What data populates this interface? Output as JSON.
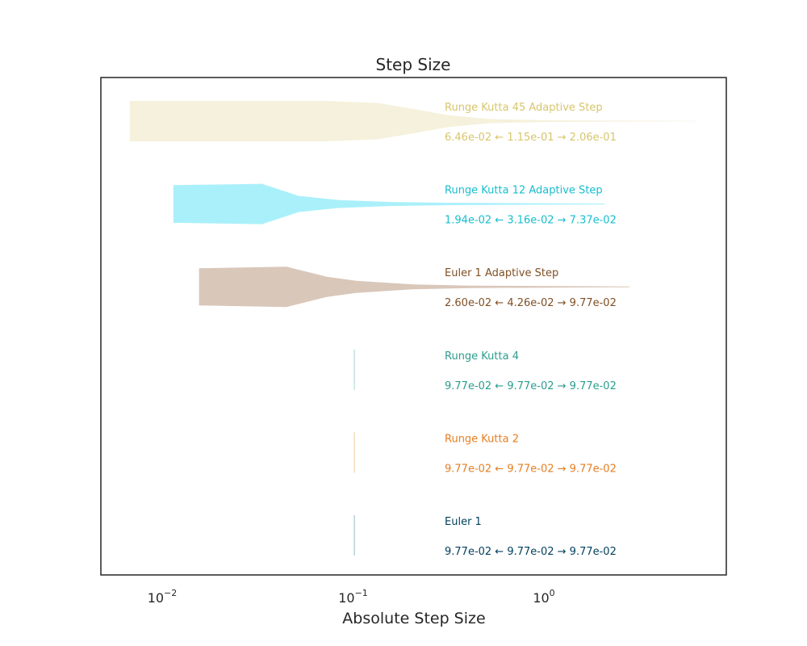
{
  "chart_data": {
    "type": "violin",
    "title": "Step Size",
    "xlabel": "Absolute Step Size",
    "ylabel": "",
    "xscale": "log",
    "xlim": [
      0.005,
      10
    ],
    "grid": false,
    "legend": "none",
    "xticks": [
      {
        "value": 0.01,
        "base": "10",
        "exp": "−2"
      },
      {
        "value": 0.1,
        "base": "10",
        "exp": "−1"
      },
      {
        "value": 1,
        "base": "10",
        "exp": "0"
      }
    ],
    "series": [
      {
        "name": "Runge Kutta 45 Adaptive Step",
        "color": "#d8c56c",
        "fill": "#f5f1dc",
        "stats_text": "6.46e-02 ← 1.15e-01 → 2.06e-01",
        "min": 0.0065,
        "max": 6.0,
        "profile": [
          [
            0.0065,
            1.0
          ],
          [
            0.07,
            1.0
          ],
          [
            0.13,
            0.9
          ],
          [
            0.2,
            0.6
          ],
          [
            0.3,
            0.3
          ],
          [
            0.5,
            0.1
          ],
          [
            1.0,
            0.04
          ],
          [
            6.0,
            0.01
          ]
        ]
      },
      {
        "name": "Runge Kutta 12 Adaptive Step",
        "color": "#17becf",
        "fill": "#aaf0fa",
        "stats_text": "1.94e-02 ← 3.16e-02 → 7.37e-02",
        "min": 0.011,
        "max": 2.0,
        "profile": [
          [
            0.011,
            0.93
          ],
          [
            0.032,
            1.0
          ],
          [
            0.05,
            0.4
          ],
          [
            0.08,
            0.2
          ],
          [
            0.15,
            0.1
          ],
          [
            0.3,
            0.06
          ],
          [
            2.0,
            0.02
          ]
        ]
      },
      {
        "name": "Euler 1 Adaptive Step",
        "color": "#7f4f24",
        "fill": "#d9c7ba",
        "stats_text": "2.60e-02 ← 4.26e-02 → 9.77e-02",
        "min": 0.015,
        "max": 2.7,
        "profile": [
          [
            0.015,
            0.92
          ],
          [
            0.043,
            1.0
          ],
          [
            0.07,
            0.5
          ],
          [
            0.1,
            0.3
          ],
          [
            0.2,
            0.12
          ],
          [
            0.4,
            0.06
          ],
          [
            2.7,
            0.02
          ]
        ]
      },
      {
        "name": "Runge Kutta 4",
        "color": "#2a9d8f",
        "fill": "#b5dcd7",
        "stats_text": "9.77e-02 ← 9.77e-02 → 9.77e-02",
        "min": 0.0977,
        "max": 0.0977,
        "profile": []
      },
      {
        "name": "Runge Kutta 2",
        "color": "#e67e22",
        "fill": "#f5d2b0",
        "stats_text": "9.77e-02 ← 9.77e-02 → 9.77e-02",
        "min": 0.0977,
        "max": 0.0977,
        "profile": []
      },
      {
        "name": "Euler 1",
        "color": "#003f5c",
        "fill": "#a9c4cf",
        "stats_text": "9.77e-02 ← 9.77e-02 → 9.77e-02",
        "min": 0.0977,
        "max": 0.0977,
        "profile": []
      }
    ]
  }
}
